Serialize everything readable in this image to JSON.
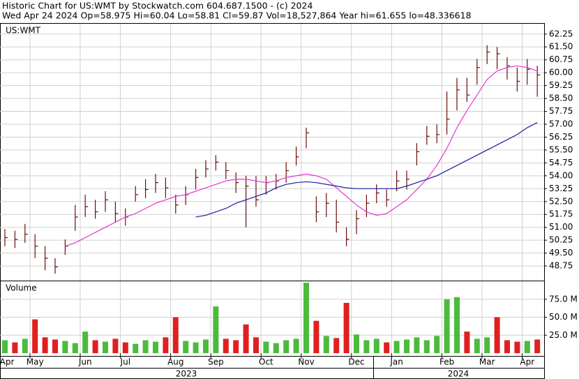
{
  "header": {
    "line1": "Historic Chart for US:WMT by Stockwatch.com 604.687.1500 - (c) 2024",
    "line2": "Wed Apr 24 2024   Op=58.975   Hi=60.04   Lo=58.81   Cl=59.87   Vol=18,527,864   Year hi=61.655   lo=48.336618"
  },
  "chart_data": [
    {
      "type": "ohlc",
      "label": "US:WMT",
      "color": "#6b0d0d",
      "grid": true,
      "ylim": [
        47.9,
        62.85
      ],
      "yticks": [
        62.25,
        {
          "value": 61.5,
          "label": "61.50"
        },
        60.75,
        {
          "value": 60,
          "label": "60.00"
        },
        59.25,
        {
          "value": 58.5,
          "label": "58.50"
        },
        57.75,
        {
          "value": 57,
          "label": "57.00"
        },
        56.25,
        {
          "value": 55.5,
          "label": "55.50"
        },
        54.75,
        {
          "value": 54,
          "label": "54.00"
        },
        53.25,
        {
          "value": 52.5,
          "label": "52.50"
        },
        51.75,
        {
          "value": 51,
          "label": "51.00"
        },
        50.25,
        {
          "value": 49.5,
          "label": "49.50"
        },
        48.75
      ],
      "high": [
        50.9,
        50.8,
        51.2,
        50.6,
        49.9,
        49.2,
        50.3,
        52.3,
        52.9,
        52.6,
        53.1,
        52.5,
        52.1,
        53.4,
        53.8,
        54.1,
        53.9,
        52.9,
        53.4,
        54.4,
        54.9,
        55.2,
        54.8,
        54.2,
        54.0,
        54.0,
        54.0,
        54.1,
        54.8,
        55.7,
        56.8,
        52.8,
        53.0,
        52.6,
        51.0,
        52.0,
        52.9,
        53.5,
        53.2,
        54.3,
        54.3,
        55.9,
        56.9,
        57.0,
        58.9,
        59.7,
        59.7,
        60.8,
        61.6,
        61.5,
        60.9,
        60.3,
        60.8,
        60.4
      ],
      "low": [
        49.9,
        49.8,
        50.1,
        49.2,
        48.5,
        48.3,
        49.4,
        50.8,
        51.6,
        51.5,
        51.9,
        51.3,
        51.1,
        52.5,
        52.7,
        53.0,
        52.7,
        51.8,
        52.3,
        53.2,
        53.9,
        54.3,
        53.8,
        53.0,
        51.0,
        52.2,
        52.9,
        53.2,
        53.6,
        54.6,
        55.6,
        51.3,
        51.6,
        50.7,
        49.9,
        50.6,
        51.6,
        52.4,
        52.2,
        53.1,
        53.2,
        54.6,
        55.8,
        55.9,
        56.4,
        57.8,
        58.3,
        59.3,
        60.5,
        60.2,
        59.6,
        58.9,
        59.3,
        58.6
      ],
      "close": [
        50.4,
        50.3,
        50.6,
        49.9,
        49.2,
        48.7,
        49.9,
        51.6,
        52.2,
        51.9,
        52.6,
        51.8,
        51.6,
        52.9,
        53.2,
        53.6,
        53.3,
        52.3,
        52.9,
        53.9,
        54.4,
        54.8,
        54.3,
        53.6,
        53.4,
        52.6,
        53.6,
        53.7,
        54.3,
        55.1,
        56.5,
        51.9,
        52.4,
        51.3,
        50.3,
        51.5,
        52.4,
        53.0,
        52.6,
        53.7,
        53.8,
        55.4,
        56.3,
        56.4,
        57.3,
        59.0,
        58.7,
        60.3,
        61.2,
        61.1,
        60.4,
        59.5,
        60.2,
        59.87
      ],
      "moving_averages": [
        {
          "color": "#e23ad0",
          "values": [
            null,
            null,
            null,
            null,
            null,
            null,
            49.9,
            50.1,
            50.4,
            50.7,
            51.0,
            51.3,
            51.6,
            51.8,
            52.1,
            52.4,
            52.6,
            52.8,
            52.9,
            53.1,
            53.3,
            53.5,
            53.7,
            53.8,
            53.8,
            53.7,
            53.6,
            53.7,
            53.9,
            54.0,
            54.1,
            54.0,
            53.8,
            53.3,
            52.8,
            52.3,
            51.9,
            51.7,
            51.8,
            52.2,
            52.6,
            53.2,
            53.8,
            54.6,
            55.6,
            56.8,
            57.8,
            58.7,
            59.6,
            60.1,
            60.3,
            60.4,
            60.3,
            60.1
          ]
        },
        {
          "color": "#1c1ca0",
          "values": [
            null,
            null,
            null,
            null,
            null,
            null,
            null,
            null,
            null,
            null,
            null,
            null,
            null,
            null,
            null,
            null,
            null,
            null,
            null,
            51.6,
            51.7,
            51.9,
            52.1,
            52.4,
            52.6,
            52.8,
            53.0,
            53.3,
            53.5,
            53.6,
            53.65,
            53.6,
            53.5,
            53.4,
            53.3,
            53.25,
            53.25,
            53.25,
            53.25,
            53.25,
            53.4,
            53.6,
            53.8,
            54.0,
            54.3,
            54.6,
            54.9,
            55.2,
            55.5,
            55.8,
            56.1,
            56.4,
            56.8,
            57.1
          ]
        }
      ]
    },
    {
      "type": "bar",
      "label": "Volume",
      "up_color": "#4cbb3c",
      "down_color": "#e02020",
      "grid": true,
      "ylim": [
        0,
        100
      ],
      "yticks": [
        {
          "value": 75,
          "label": "75.0 M"
        },
        {
          "value": 50,
          "label": "50.0 M"
        },
        {
          "value": 25,
          "label": "25.0 M"
        }
      ],
      "values": [
        18,
        15,
        20,
        47,
        22,
        19,
        17,
        14,
        30,
        18,
        16,
        20,
        15,
        13,
        18,
        16,
        22,
        50,
        17,
        15,
        19,
        65,
        20,
        18,
        40,
        22,
        16,
        14,
        18,
        20,
        98,
        45,
        24,
        21,
        70,
        26,
        18,
        20,
        15,
        17,
        19,
        22,
        18,
        24,
        75,
        78,
        30,
        20,
        22,
        50,
        18,
        16,
        17,
        19
      ],
      "categories": [
        "Apr",
        null,
        null,
        "May",
        null,
        null,
        null,
        null,
        "Jun",
        null,
        null,
        null,
        "Jul",
        null,
        null,
        null,
        null,
        "Aug",
        null,
        null,
        null,
        "Sep",
        null,
        null,
        null,
        null,
        "Oct",
        null,
        null,
        null,
        "Nov",
        null,
        null,
        null,
        null,
        "Dec",
        null,
        null,
        null,
        "Jan",
        null,
        null,
        null,
        null,
        "Feb",
        null,
        null,
        null,
        "Mar",
        null,
        null,
        null,
        "Apr",
        null
      ],
      "x_groups": [
        "2023",
        "2024"
      ]
    }
  ]
}
